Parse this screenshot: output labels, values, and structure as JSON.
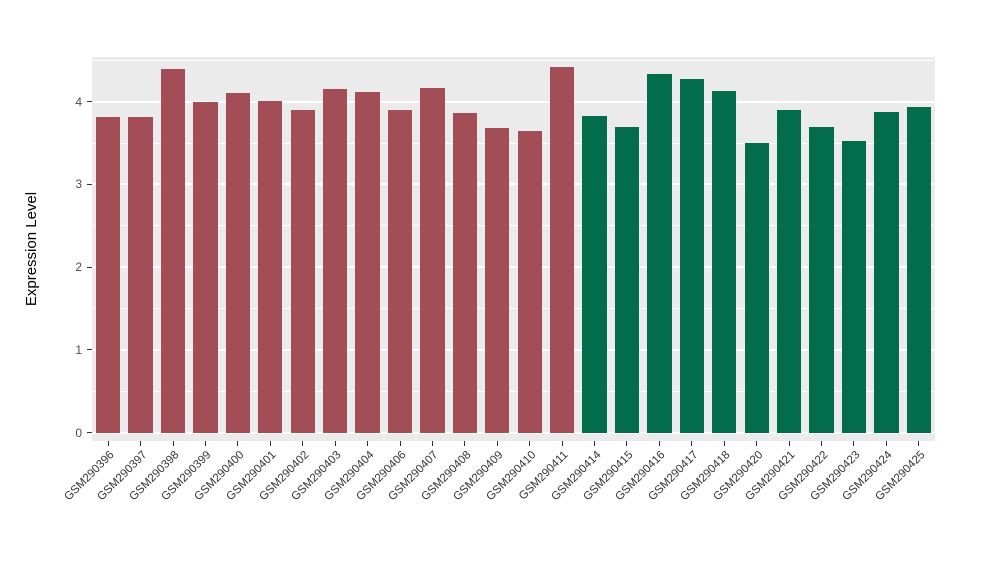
{
  "chart_data": {
    "type": "bar",
    "title": "",
    "xlabel": "",
    "ylabel": "Expression Level",
    "ylim": [
      -0.1,
      4.54
    ],
    "yticks": [
      0,
      1,
      2,
      3,
      4
    ],
    "grid": true,
    "legend_position": "none",
    "panel_background": "#EBEBEB",
    "grid_color": "#FFFFFF",
    "categories": [
      "GSM290396",
      "GSM290397",
      "GSM290398",
      "GSM290399",
      "GSM290400",
      "GSM290401",
      "GSM290402",
      "GSM290403",
      "GSM290404",
      "GSM290406",
      "GSM290407",
      "GSM290408",
      "GSM290409",
      "GSM290410",
      "GSM290411",
      "GSM290414",
      "GSM290415",
      "GSM290416",
      "GSM290417",
      "GSM290418",
      "GSM290420",
      "GSM290421",
      "GSM290422",
      "GSM290423",
      "GSM290424",
      "GSM290425"
    ],
    "values": [
      3.82,
      3.81,
      4.4,
      4.0,
      4.1,
      4.01,
      3.9,
      4.15,
      4.12,
      3.9,
      4.17,
      3.86,
      3.68,
      3.65,
      4.42,
      3.83,
      3.7,
      4.33,
      4.27,
      4.13,
      3.5,
      3.9,
      3.7,
      3.52,
      3.87,
      3.93
    ],
    "bar_groups": [
      "group_a",
      "group_a",
      "group_a",
      "group_a",
      "group_a",
      "group_a",
      "group_a",
      "group_a",
      "group_a",
      "group_a",
      "group_a",
      "group_a",
      "group_a",
      "group_a",
      "group_a",
      "group_b",
      "group_b",
      "group_b",
      "group_b",
      "group_b",
      "group_b",
      "group_b",
      "group_b",
      "group_b",
      "group_b",
      "group_b"
    ],
    "group_colors": {
      "group_a": "#A34E56",
      "group_b": "#026C4B"
    }
  }
}
